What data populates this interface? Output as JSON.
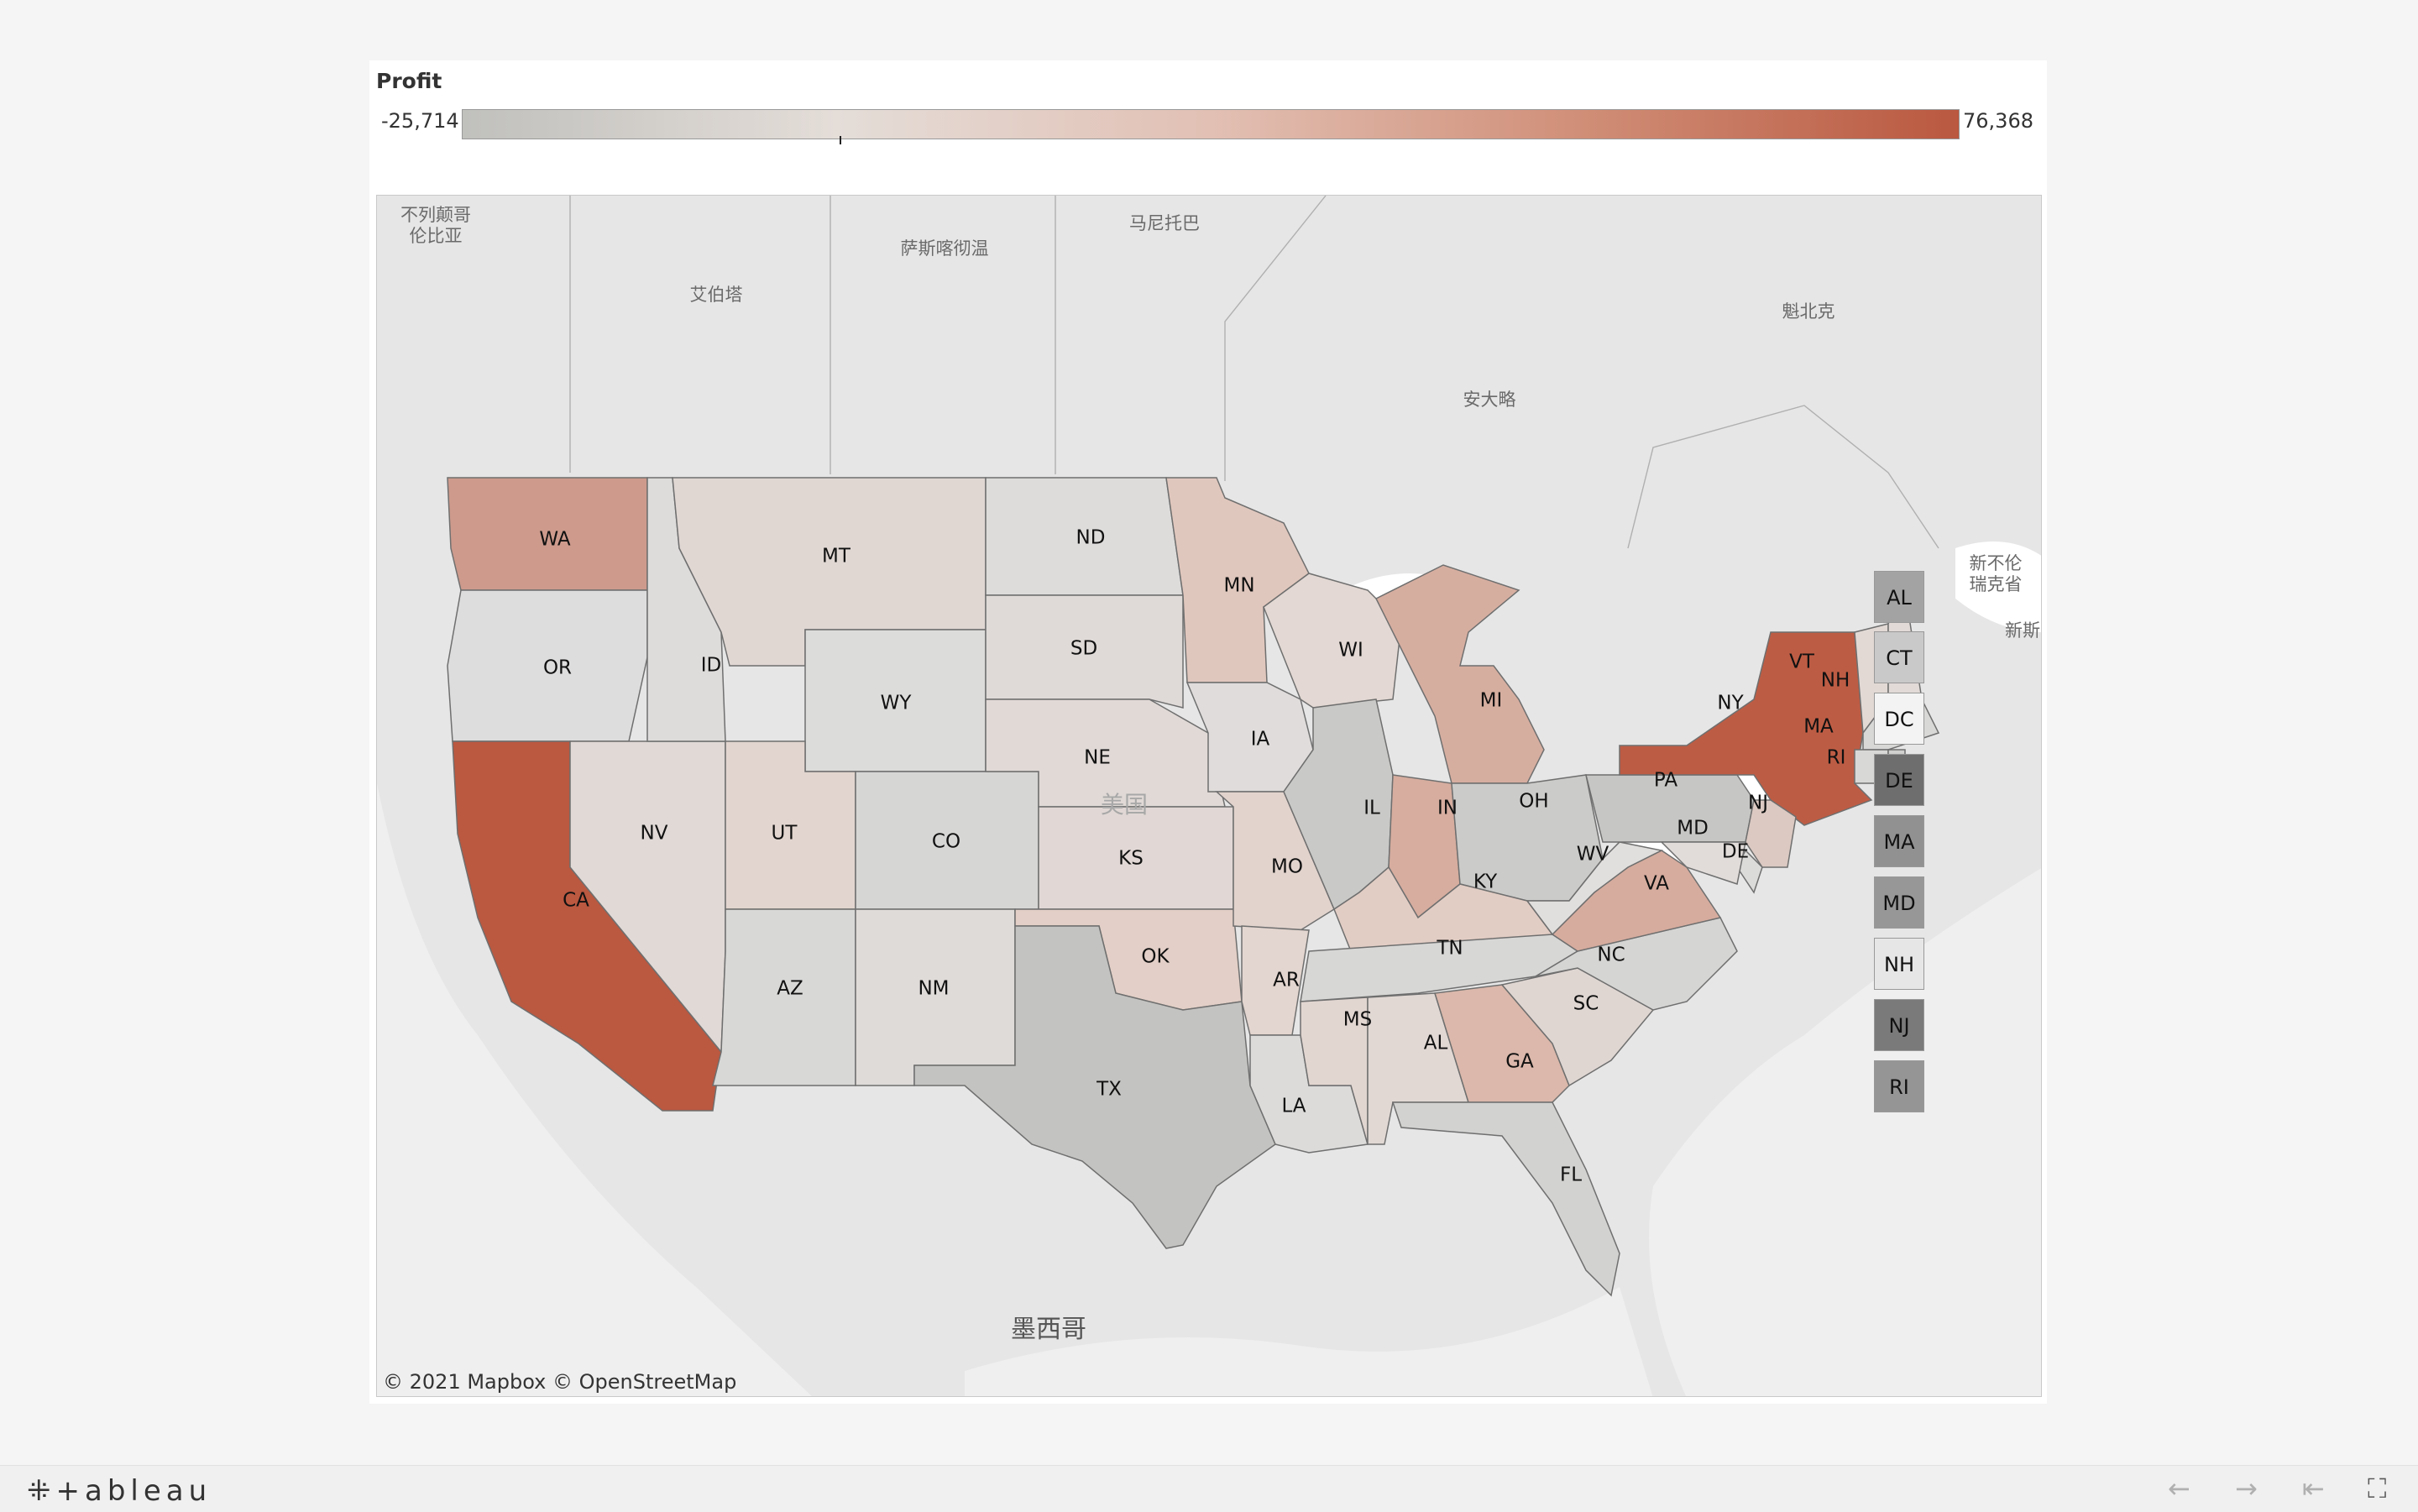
{
  "legend": {
    "title": "Profit",
    "min": "-25,714",
    "max": "76,368",
    "min_value": -25714,
    "max_value": 76368,
    "colors": [
      "#c0c0bd",
      "#e4ddd8",
      "#e2c0b4",
      "#d08e77",
      "#ba5840"
    ]
  },
  "map": {
    "attribution": "© 2021 Mapbox  © OpenStreetMap",
    "places": [
      {
        "id": "bc",
        "label": "不列颠哥"
      },
      {
        "id": "bc2",
        "label": "伦比亚"
      },
      {
        "id": "ab",
        "label": "艾伯塔"
      },
      {
        "id": "sk",
        "label": "萨斯喀彻温"
      },
      {
        "id": "mb",
        "label": "马尼托巴"
      },
      {
        "id": "on",
        "label": "安大略"
      },
      {
        "id": "qc",
        "label": "魁北克"
      },
      {
        "id": "nl",
        "label": "新不伦"
      },
      {
        "id": "nl2",
        "label": "瑞克省"
      },
      {
        "id": "ns",
        "label": "新斯"
      },
      {
        "id": "us",
        "label": "美国"
      },
      {
        "id": "mx",
        "label": "墨西哥"
      }
    ],
    "states": [
      {
        "abbr": "WA",
        "fill": "#cd9a8c"
      },
      {
        "abbr": "OR",
        "fill": "#dedddd"
      },
      {
        "abbr": "CA",
        "fill": "#ba5840"
      },
      {
        "abbr": "NV",
        "fill": "#e0d9d6"
      },
      {
        "abbr": "ID",
        "fill": "#dedcdb"
      },
      {
        "abbr": "MT",
        "fill": "#e0d7d3"
      },
      {
        "abbr": "WY",
        "fill": "#dcdcdb"
      },
      {
        "abbr": "UT",
        "fill": "#e2d5cf"
      },
      {
        "abbr": "AZ",
        "fill": "#d8d8d7"
      },
      {
        "abbr": "CO",
        "fill": "#d6d6d5"
      },
      {
        "abbr": "NM",
        "fill": "#dfdbd9"
      },
      {
        "abbr": "ND",
        "fill": "#dddcdb"
      },
      {
        "abbr": "SD",
        "fill": "#dfdad8"
      },
      {
        "abbr": "NE",
        "fill": "#e0d9d6"
      },
      {
        "abbr": "KS",
        "fill": "#e1d8d5"
      },
      {
        "abbr": "OK",
        "fill": "#e3cfc7"
      },
      {
        "abbr": "TX",
        "fill": "#c3c3c1"
      },
      {
        "abbr": "MN",
        "fill": "#e0c7bd"
      },
      {
        "abbr": "IA",
        "fill": "#dfdcdb"
      },
      {
        "abbr": "MO",
        "fill": "#e2d3cd"
      },
      {
        "abbr": "AR",
        "fill": "#e3d5cf"
      },
      {
        "abbr": "LA",
        "fill": "#dcdbda"
      },
      {
        "abbr": "WI",
        "fill": "#e3d8d3"
      },
      {
        "abbr": "IL",
        "fill": "#c9c9c7"
      },
      {
        "abbr": "MI",
        "fill": "#d6aea0"
      },
      {
        "abbr": "IN",
        "fill": "#d6ad9f"
      },
      {
        "abbr": "OH",
        "fill": "#cbcbc9"
      },
      {
        "abbr": "KY",
        "fill": "#e2cdc4"
      },
      {
        "abbr": "TN",
        "fill": "#d7d7d6"
      },
      {
        "abbr": "MS",
        "fill": "#e2d6d1"
      },
      {
        "abbr": "AL",
        "fill": "#e1d8d4"
      },
      {
        "abbr": "GA",
        "fill": "#dbb8ab"
      },
      {
        "abbr": "FL",
        "fill": "#d2d2d1"
      },
      {
        "abbr": "SC",
        "fill": "#dfd6d2"
      },
      {
        "abbr": "NC",
        "fill": "#d5d5d4"
      },
      {
        "abbr": "VA",
        "fill": "#d6ac9e"
      },
      {
        "abbr": "WV",
        "fill": "#e1dfde"
      },
      {
        "abbr": "PA",
        "fill": "#c6c6c4"
      },
      {
        "abbr": "NY",
        "fill": "#bd5c44"
      },
      {
        "abbr": "VT",
        "fill": "#e2d9d5"
      },
      {
        "abbr": "NH",
        "fill": "#e1dad7"
      },
      {
        "abbr": "MA",
        "fill": "#d8d8d7"
      },
      {
        "abbr": "RI",
        "fill": "#d0d0cf"
      },
      {
        "abbr": "CT",
        "fill": "#d8d8d7"
      },
      {
        "abbr": "NJ",
        "fill": "#dbc9c2"
      },
      {
        "abbr": "DE",
        "fill": "#dbdbda"
      },
      {
        "abbr": "MD",
        "fill": "#e1dcda"
      }
    ]
  },
  "mini_legend": [
    {
      "abbr": "AL",
      "fill": "#a3a3a3"
    },
    {
      "abbr": "CT",
      "fill": "#c9c9c9"
    },
    {
      "abbr": "DC",
      "fill": "#f3f3f3"
    },
    {
      "abbr": "DE",
      "fill": "#6e6e6e"
    },
    {
      "abbr": "MA",
      "fill": "#919191"
    },
    {
      "abbr": "MD",
      "fill": "#979797"
    },
    {
      "abbr": "NH",
      "fill": "#e6e6e6"
    },
    {
      "abbr": "NJ",
      "fill": "#7a7a7a"
    },
    {
      "abbr": "RI",
      "fill": "#959595"
    }
  ],
  "footer": {
    "logo": "+ableau",
    "nav": [
      "←",
      "→",
      "⇤",
      "⛶"
    ]
  }
}
